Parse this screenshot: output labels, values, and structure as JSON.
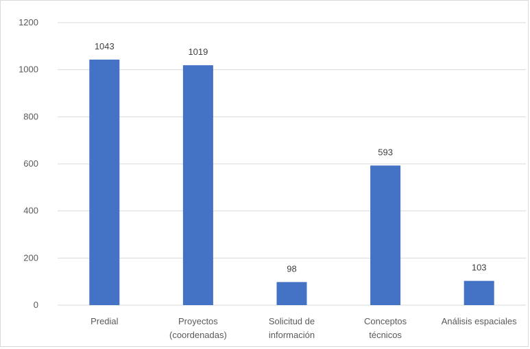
{
  "chart_data": {
    "type": "bar",
    "title": "",
    "xlabel": "",
    "ylabel": "",
    "categories": [
      [
        "Predial"
      ],
      [
        "Proyectos",
        "(coordenadas)"
      ],
      [
        "Solicitud de",
        "información"
      ],
      [
        "Conceptos",
        "técnicos"
      ],
      [
        "Análisis espaciales"
      ]
    ],
    "values": [
      1043,
      1019,
      98,
      593,
      103
    ],
    "ylim": [
      0,
      1200
    ],
    "yticks": [
      0,
      200,
      400,
      600,
      800,
      1000,
      1200
    ],
    "grid": true,
    "legend": "none",
    "data_labels": true,
    "bar_color": "#4472C4",
    "grid_color": "#d9d9d9"
  }
}
